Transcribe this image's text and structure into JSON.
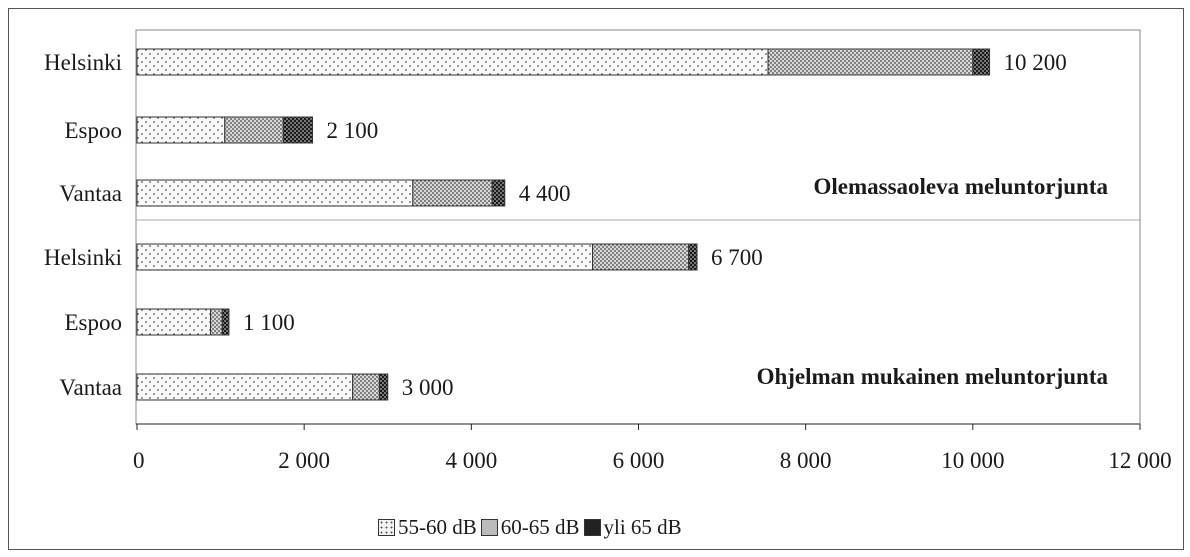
{
  "chart_data": {
    "type": "bar",
    "orientation": "horizontal",
    "stacked": true,
    "categories": [
      "Helsinki",
      "Espoo",
      "Vantaa",
      "Helsinki",
      "Espoo",
      "Vantaa"
    ],
    "groups": [
      {
        "label": "Olemassaoleva meluntorjunta",
        "category_indices": [
          0,
          1,
          2
        ]
      },
      {
        "label": "Ohjelman mukainen meluntorjunta",
        "category_indices": [
          3,
          4,
          5
        ]
      }
    ],
    "series": [
      {
        "name": "55-60 dB",
        "values": [
          7550,
          1050,
          3300,
          5450,
          880,
          2580
        ],
        "pattern": "sparse-dots"
      },
      {
        "name": "60-65 dB",
        "values": [
          2450,
          700,
          950,
          1150,
          140,
          320
        ],
        "pattern": "dense-dots"
      },
      {
        "name": "yli 65 dB",
        "values": [
          200,
          350,
          150,
          100,
          80,
          100
        ],
        "pattern": "dark-checker"
      }
    ],
    "totals": [
      "10 200",
      "2 100",
      "4 400",
      "6 700",
      "1 100",
      "3 000"
    ],
    "xlim": [
      0,
      12000
    ],
    "xticks": [
      0,
      2000,
      4000,
      6000,
      8000,
      10000,
      12000
    ],
    "xtick_labels": [
      "0",
      "2 000",
      "4 000",
      "6 000",
      "8 000",
      "10 000",
      "12 000"
    ],
    "grid": false,
    "legend_position": "bottom-center"
  }
}
